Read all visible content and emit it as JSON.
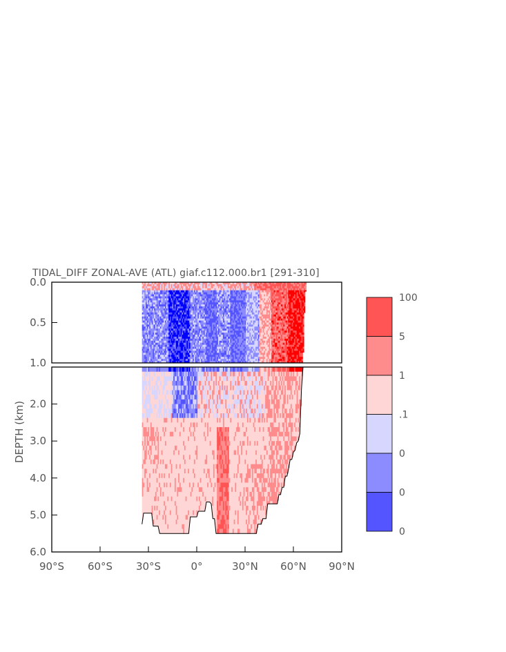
{
  "chart_data": {
    "type": "heatmap",
    "title": "TIDAL_DIFF ZONAL-AVE (ATL) giaf.c112.000.br1 [291-310]",
    "ylabel": "DEPTH (km)",
    "xlabel": "",
    "xlim": [
      -90,
      90
    ],
    "ylim": [
      6.0,
      0.0
    ],
    "upper_panel": {
      "ylim": [
        0.0,
        1.0
      ],
      "y_ticks": [
        "0.0",
        "0.5",
        "1.0"
      ],
      "y_tick_values": [
        0.0,
        0.5,
        1.0
      ]
    },
    "lower_panel": {
      "ylim": [
        1.0,
        6.0
      ],
      "y_ticks": [
        "2.0",
        "3.0",
        "4.0",
        "5.0",
        "6.0"
      ],
      "y_tick_values": [
        2.0,
        3.0,
        4.0,
        5.0,
        6.0
      ]
    },
    "x_ticks": [
      "90°S",
      "60°S",
      "30°S",
      "0°",
      "30°N",
      "60°N",
      "90°N"
    ],
    "x_tick_values": [
      -90,
      -60,
      -30,
      0,
      30,
      60,
      90
    ],
    "colorbar": {
      "labels": [
        "100",
        "5",
        "1",
        ".1",
        "0",
        "0",
        "0"
      ],
      "colors": [
        "#ff5555",
        "#ff8c8c",
        "#ffd6d6",
        "#d6d6ff",
        "#8c8cff",
        "#5555ff"
      ]
    },
    "levels": {
      "strong_pos": "#ff0000",
      "mid_pos": "#ff5555",
      "weak_pos": "#ff8c8c",
      "near_zero_pos": "#ffd6d6",
      "near_zero_neg": "#d6d6ff",
      "weak_neg": "#8c8cff",
      "mid_neg": "#5555ff",
      "strong_neg": "#0000ff"
    },
    "domain": {
      "lat_south": -34,
      "lat_north": 68,
      "bottom_profile": [
        [
          -34,
          5.25
        ],
        [
          -33,
          4.95
        ],
        [
          -28,
          4.95
        ],
        [
          -27,
          5.3
        ],
        [
          -24,
          5.3
        ],
        [
          -23,
          5.5
        ],
        [
          -5,
          5.5
        ],
        [
          -4,
          5.05
        ],
        [
          0,
          5.05
        ],
        [
          1,
          4.9
        ],
        [
          5,
          4.9
        ],
        [
          6,
          4.65
        ],
        [
          8,
          4.65
        ],
        [
          9,
          4.7
        ],
        [
          10,
          5.1
        ],
        [
          11,
          5.1
        ],
        [
          12,
          5.5
        ],
        [
          37,
          5.5
        ],
        [
          38,
          5.25
        ],
        [
          40,
          5.25
        ],
        [
          41,
          5.1
        ],
        [
          43,
          5.1
        ],
        [
          44,
          4.7
        ],
        [
          50,
          4.7
        ],
        [
          51,
          4.45
        ],
        [
          52,
          4.45
        ],
        [
          53,
          4.25
        ],
        [
          54,
          4.25
        ],
        [
          55,
          3.95
        ],
        [
          56,
          3.95
        ],
        [
          57,
          3.75
        ],
        [
          58,
          3.5
        ],
        [
          59,
          3.5
        ],
        [
          60,
          3.3
        ],
        [
          61,
          3.25
        ],
        [
          62,
          3.05
        ],
        [
          63,
          3.0
        ],
        [
          64,
          2.8
        ],
        [
          65,
          1.6
        ],
        [
          66,
          0.95
        ],
        [
          67,
          0.3
        ],
        [
          68,
          0.0
        ]
      ]
    }
  }
}
